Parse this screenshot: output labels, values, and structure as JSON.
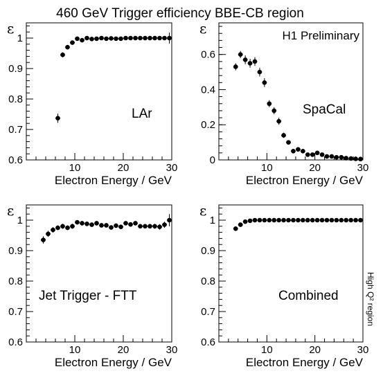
{
  "page": {
    "title": "460 GeV Trigger efficiency BBE-CB region",
    "side_label": "High Q² region"
  },
  "chart_data": [
    {
      "type": "scatter",
      "panel": "top-left",
      "inner_label": "LAr",
      "ylabel": "ε",
      "xlabel": "Electron Energy / GeV",
      "xlim": [
        0,
        30
      ],
      "ylim": [
        0.6,
        1.05
      ],
      "x_ticks": [
        10,
        20,
        30
      ],
      "y_ticks": [
        0.6,
        0.7,
        0.8,
        0.9,
        1
      ],
      "y_tick_labels": [
        "0.6",
        "0.7",
        "0.8",
        "0.9",
        "1"
      ],
      "x": [
        6.5,
        7.5,
        8.5,
        9.5,
        10.5,
        11.5,
        12.5,
        13.5,
        14.5,
        15.5,
        16.5,
        17.5,
        18.5,
        19.5,
        20.5,
        21.5,
        22.5,
        23.5,
        24.5,
        25.5,
        26.5,
        27.5,
        28.5,
        29.5
      ],
      "y": [
        0.737,
        0.945,
        0.97,
        0.985,
        0.998,
        0.993,
        1.0,
        0.997,
        0.998,
        1.0,
        0.998,
        0.999,
        0.998,
        0.998,
        1.0,
        1.0,
        1.0,
        1.0,
        1.0,
        1.0,
        1.0,
        1.0,
        1.0,
        1.0
      ],
      "yerr": [
        0.015,
        0.008,
        0.006,
        0.005,
        0.004,
        0.004,
        0.003,
        0.003,
        0.003,
        0.003,
        0.003,
        0.003,
        0.002,
        0.002,
        0.002,
        0.002,
        0.002,
        0.002,
        0.002,
        0.002,
        0.002,
        0.002,
        0.004,
        0.018
      ]
    },
    {
      "type": "scatter",
      "panel": "top-right",
      "inner_label": "SpaCal",
      "annotation": "H1 Preliminary",
      "ylabel": "ε",
      "xlabel": "Electron Energy / GeV",
      "xlim": [
        0,
        30
      ],
      "ylim": [
        0,
        0.78
      ],
      "x_ticks": [
        10,
        20,
        30
      ],
      "y_ticks": [
        0,
        0.2,
        0.4,
        0.6
      ],
      "y_tick_labels": [
        "0",
        "0.2",
        "0.4",
        "0.6"
      ],
      "x": [
        3.5,
        4.5,
        5.5,
        6.5,
        7.5,
        8.5,
        9.5,
        10.5,
        11.5,
        12.5,
        13.5,
        14.5,
        15.5,
        16.5,
        17.5,
        18.5,
        19.5,
        20.5,
        21.5,
        22.5,
        23.5,
        24.5,
        25.5,
        26.5,
        27.5,
        28.5,
        29.5
      ],
      "y": [
        0.53,
        0.6,
        0.57,
        0.55,
        0.56,
        0.5,
        0.44,
        0.32,
        0.28,
        0.22,
        0.14,
        0.1,
        0.05,
        0.06,
        0.05,
        0.03,
        0.03,
        0.04,
        0.03,
        0.02,
        0.02,
        0.015,
        0.015,
        0.01,
        0.008,
        0.006,
        0.005
      ],
      "yerr": [
        0.02,
        0.02,
        0.025,
        0.025,
        0.025,
        0.025,
        0.025,
        0.02,
        0.02,
        0.02,
        0.015,
        0.012,
        0.01,
        0.01,
        0.01,
        0.008,
        0.008,
        0.008,
        0.007,
        0.006,
        0.006,
        0.005,
        0.005,
        0.005,
        0.004,
        0.004,
        0.004
      ]
    },
    {
      "type": "scatter",
      "panel": "bottom-left",
      "inner_label": "Jet Trigger - FTT",
      "ylabel": "ε",
      "xlabel": "Electron Energy / GeV",
      "xlim": [
        0,
        30
      ],
      "ylim": [
        0.6,
        1.05
      ],
      "x_ticks": [
        10,
        20,
        30
      ],
      "y_ticks": [
        0.6,
        0.7,
        0.8,
        0.9,
        1
      ],
      "y_tick_labels": [
        "0.6",
        "0.7",
        "0.8",
        "0.9",
        "1"
      ],
      "x": [
        3.5,
        4.5,
        5.5,
        6.5,
        7.5,
        8.5,
        9.5,
        10.5,
        11.5,
        12.5,
        13.5,
        14.5,
        15.5,
        16.5,
        17.5,
        18.5,
        19.5,
        20.5,
        21.5,
        22.5,
        23.5,
        24.5,
        25.5,
        26.5,
        27.5,
        28.5,
        29.5
      ],
      "y": [
        0.935,
        0.955,
        0.968,
        0.975,
        0.98,
        0.975,
        0.98,
        0.993,
        0.99,
        0.988,
        0.985,
        0.99,
        0.983,
        0.983,
        0.976,
        0.982,
        0.978,
        0.99,
        0.986,
        0.99,
        0.98,
        0.98,
        0.98,
        0.98,
        0.978,
        0.985,
        1.0
      ],
      "yerr": [
        0.012,
        0.01,
        0.009,
        0.008,
        0.008,
        0.008,
        0.008,
        0.007,
        0.007,
        0.007,
        0.007,
        0.007,
        0.007,
        0.007,
        0.007,
        0.007,
        0.007,
        0.007,
        0.007,
        0.007,
        0.007,
        0.007,
        0.007,
        0.008,
        0.009,
        0.01,
        0.02
      ]
    },
    {
      "type": "scatter",
      "panel": "bottom-right",
      "inner_label": "Combined",
      "ylabel": "ε",
      "xlabel": "Electron Energy / GeV",
      "xlim": [
        0,
        30
      ],
      "ylim": [
        0.6,
        1.05
      ],
      "x_ticks": [
        10,
        20,
        30
      ],
      "y_ticks": [
        0.6,
        0.7,
        0.8,
        0.9,
        1
      ],
      "y_tick_labels": [
        "0.6",
        "0.7",
        "0.8",
        "0.9",
        "1"
      ],
      "x": [
        3.5,
        4.5,
        5.5,
        6.5,
        7.5,
        8.5,
        9.5,
        10.5,
        11.5,
        12.5,
        13.5,
        14.5,
        15.5,
        16.5,
        17.5,
        18.5,
        19.5,
        20.5,
        21.5,
        22.5,
        23.5,
        24.5,
        25.5,
        26.5,
        27.5,
        28.5,
        29.5
      ],
      "y": [
        0.972,
        0.985,
        0.995,
        0.998,
        1.0,
        1.0,
        1.0,
        1.0,
        1.0,
        1.0,
        1.0,
        1.0,
        1.0,
        1.0,
        1.0,
        1.0,
        1.0,
        1.0,
        1.0,
        1.0,
        1.0,
        1.0,
        1.0,
        1.0,
        1.0,
        1.0,
        1.0
      ],
      "yerr": [
        0.006,
        0.004,
        0.003,
        0.002,
        0.002,
        0.002,
        0.001,
        0.001,
        0.001,
        0.001,
        0.001,
        0.001,
        0.001,
        0.001,
        0.001,
        0.001,
        0.001,
        0.001,
        0.001,
        0.001,
        0.001,
        0.001,
        0.001,
        0.001,
        0.001,
        0.001,
        0.001
      ]
    }
  ]
}
